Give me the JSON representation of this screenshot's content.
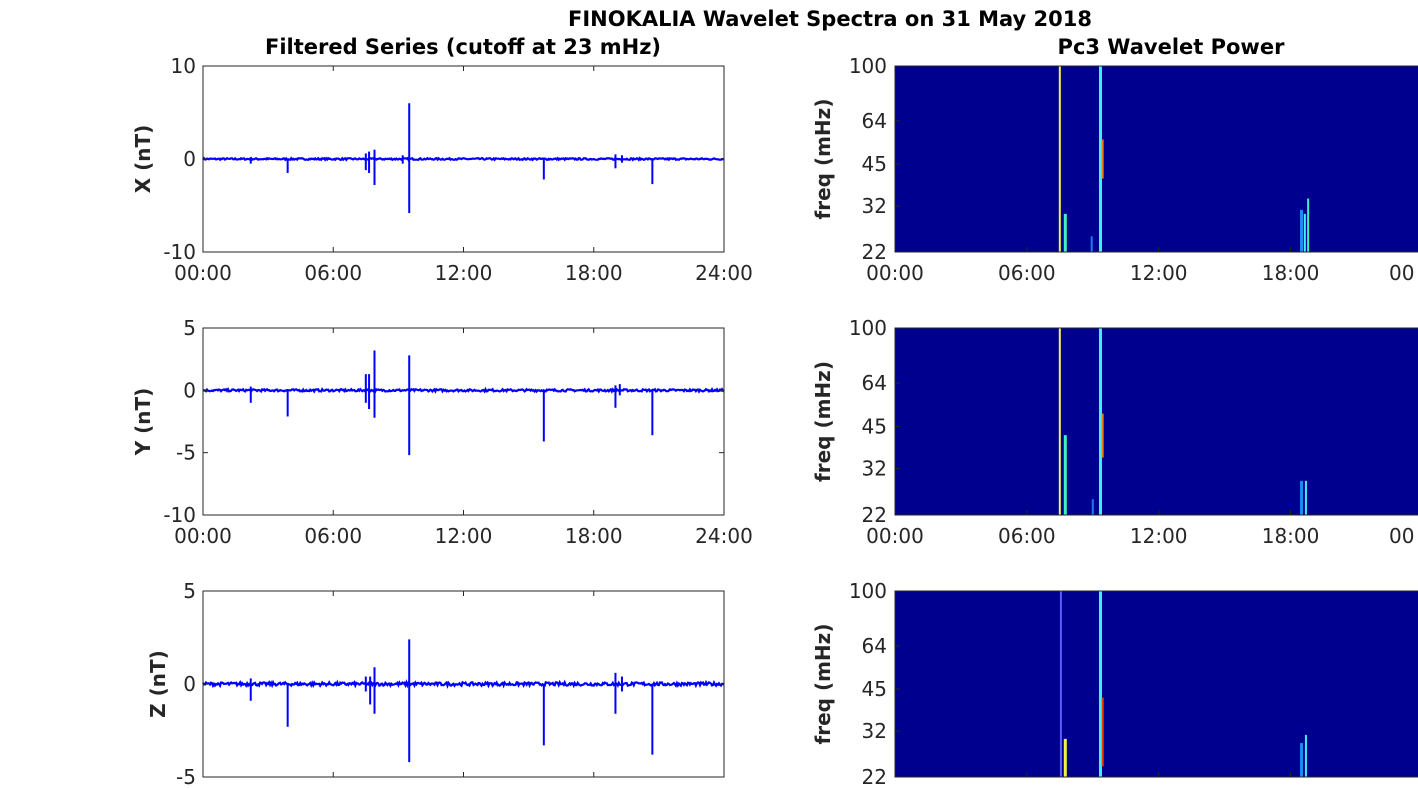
{
  "title": "FINOKALIA Wavelet Spectra on 31 May 2018",
  "left_title": "Filtered Series (cutoff at 23 mHz)",
  "right_title": "Pc3 Wavelet Power",
  "colors": {
    "line": "#0000ff",
    "background_power": "#00008f"
  },
  "chart_data": [
    {
      "type": "line",
      "panel": "X",
      "ylabel": "X (nT)",
      "xlim": [
        "00:00",
        "24:00"
      ],
      "ylim": [
        -10,
        10
      ],
      "xticks": [
        "00:00",
        "06:00",
        "12:00",
        "18:00",
        "24:00"
      ],
      "yticks": [
        "10",
        "0",
        "-10"
      ],
      "baseline": 0,
      "spikes": [
        {
          "t": 2.2,
          "min": -0.5,
          "max": 0.2
        },
        {
          "t": 3.9,
          "min": -1.5,
          "max": 0.0
        },
        {
          "t": 7.5,
          "min": -1.2,
          "max": 0.6
        },
        {
          "t": 7.65,
          "min": -1.5,
          "max": 0.8
        },
        {
          "t": 7.9,
          "min": -2.8,
          "max": 1.0
        },
        {
          "t": 9.2,
          "min": -0.5,
          "max": 0.4
        },
        {
          "t": 9.5,
          "min": -5.8,
          "max": 6.0
        },
        {
          "t": 15.7,
          "min": -2.2,
          "max": 0.0
        },
        {
          "t": 19.0,
          "min": -1.0,
          "max": 0.5
        },
        {
          "t": 19.3,
          "min": -0.4,
          "max": 0.4
        },
        {
          "t": 20.7,
          "min": -2.7,
          "max": 0.0
        }
      ]
    },
    {
      "type": "line",
      "panel": "Y",
      "ylabel": "Y (nT)",
      "xlim": [
        "00:00",
        "24:00"
      ],
      "ylim": [
        -10,
        5
      ],
      "xticks": [
        "00:00",
        "06:00",
        "12:00",
        "18:00",
        "24:00"
      ],
      "yticks": [
        "5",
        "0",
        "-5",
        "-10"
      ],
      "baseline": 0,
      "spikes": [
        {
          "t": 2.2,
          "min": -1.0,
          "max": 0.3
        },
        {
          "t": 3.9,
          "min": -2.1,
          "max": 0.0
        },
        {
          "t": 7.5,
          "min": -1.0,
          "max": 1.3
        },
        {
          "t": 7.65,
          "min": -1.5,
          "max": 1.3
        },
        {
          "t": 7.9,
          "min": -2.2,
          "max": 3.2
        },
        {
          "t": 9.5,
          "min": -5.2,
          "max": 2.8
        },
        {
          "t": 15.7,
          "min": -4.1,
          "max": 0.0
        },
        {
          "t": 19.0,
          "min": -1.4,
          "max": 0.4
        },
        {
          "t": 19.2,
          "min": -0.4,
          "max": 0.5
        },
        {
          "t": 20.7,
          "min": -3.6,
          "max": 0.0
        }
      ]
    },
    {
      "type": "line",
      "panel": "Z",
      "ylabel": "Z (nT)",
      "xlim": [
        "00:00",
        "24:00"
      ],
      "ylim": [
        -5,
        5
      ],
      "xticks": [],
      "yticks": [
        "5",
        "0",
        "-5"
      ],
      "baseline": 0,
      "spikes": [
        {
          "t": 2.2,
          "min": -0.9,
          "max": 0.3
        },
        {
          "t": 3.9,
          "min": -2.3,
          "max": 0.0
        },
        {
          "t": 7.5,
          "min": -0.4,
          "max": 0.4
        },
        {
          "t": 7.7,
          "min": -1.1,
          "max": 0.4
        },
        {
          "t": 7.9,
          "min": -1.6,
          "max": 0.9
        },
        {
          "t": 9.5,
          "min": -4.2,
          "max": 2.4
        },
        {
          "t": 15.7,
          "min": -3.3,
          "max": 0.0
        },
        {
          "t": 19.0,
          "min": -1.6,
          "max": 0.6
        },
        {
          "t": 19.3,
          "min": -0.4,
          "max": 0.4
        },
        {
          "t": 20.7,
          "min": -3.8,
          "max": 0.0
        }
      ]
    },
    {
      "type": "heatmap",
      "panel": "X power",
      "ylabel": "freq (mHz)",
      "xticks": [
        "00:00",
        "06:00",
        "12:00",
        "18:00",
        "00"
      ],
      "yticks": [
        "100",
        "64",
        "45",
        "32",
        "22"
      ],
      "ylim": [
        22,
        100
      ],
      "yscale": "log",
      "streaks": [
        {
          "t": 7.5,
          "f_low": 22,
          "f_high": 100,
          "color": "#ffff40",
          "width": 2
        },
        {
          "t": 7.75,
          "f_low": 22,
          "f_high": 30,
          "color": "#40ffc0",
          "width": 3
        },
        {
          "t": 8.95,
          "f_low": 22,
          "f_high": 25,
          "color": "#2080ff",
          "width": 2
        },
        {
          "t": 9.35,
          "f_low": 22,
          "f_high": 100,
          "color": "#40ffff",
          "width": 3
        },
        {
          "t": 9.45,
          "f_low": 40,
          "f_high": 55,
          "color": "#ff8000",
          "width": 2
        },
        {
          "t": 18.5,
          "f_low": 22,
          "f_high": 31,
          "color": "#2090ff",
          "width": 3
        },
        {
          "t": 18.65,
          "f_low": 22,
          "f_high": 30,
          "color": "#40ffff",
          "width": 2
        },
        {
          "t": 18.8,
          "f_low": 22,
          "f_high": 34,
          "color": "#40ffc0",
          "width": 2
        }
      ]
    },
    {
      "type": "heatmap",
      "panel": "Y power",
      "ylabel": "freq (mHz)",
      "xticks": [
        "00:00",
        "06:00",
        "12:00",
        "18:00",
        "00"
      ],
      "yticks": [
        "100",
        "64",
        "45",
        "32",
        "22"
      ],
      "ylim": [
        22,
        100
      ],
      "yscale": "log",
      "streaks": [
        {
          "t": 7.5,
          "f_low": 22,
          "f_high": 100,
          "color": "#ffff60",
          "width": 2
        },
        {
          "t": 7.75,
          "f_low": 22,
          "f_high": 42,
          "color": "#40ffc0",
          "width": 3
        },
        {
          "t": 9.0,
          "f_low": 22,
          "f_high": 25,
          "color": "#2080ff",
          "width": 2
        },
        {
          "t": 9.35,
          "f_low": 22,
          "f_high": 100,
          "color": "#40ffff",
          "width": 3
        },
        {
          "t": 9.45,
          "f_low": 35,
          "f_high": 50,
          "color": "#ff8000",
          "width": 2
        },
        {
          "t": 18.5,
          "f_low": 22,
          "f_high": 29,
          "color": "#2090ff",
          "width": 3
        },
        {
          "t": 18.7,
          "f_low": 22,
          "f_high": 29,
          "color": "#40ffff",
          "width": 2
        }
      ]
    },
    {
      "type": "heatmap",
      "panel": "Z power",
      "ylabel": "freq (mHz)",
      "xticks": [],
      "yticks": [
        "100",
        "64",
        "45",
        "32",
        "22"
      ],
      "ylim": [
        22,
        100
      ],
      "yscale": "log",
      "streaks": [
        {
          "t": 7.55,
          "f_low": 22,
          "f_high": 100,
          "color": "#6060ff",
          "width": 2
        },
        {
          "t": 7.75,
          "f_low": 22,
          "f_high": 30,
          "color": "#ffff40",
          "width": 3
        },
        {
          "t": 9.35,
          "f_low": 22,
          "f_high": 100,
          "color": "#40ffff",
          "width": 3
        },
        {
          "t": 9.45,
          "f_low": 24,
          "f_high": 42,
          "color": "#ff4000",
          "width": 2
        },
        {
          "t": 18.5,
          "f_low": 22,
          "f_high": 29,
          "color": "#2090ff",
          "width": 3
        },
        {
          "t": 18.7,
          "f_low": 22,
          "f_high": 31,
          "color": "#40ffff",
          "width": 2
        }
      ]
    }
  ]
}
